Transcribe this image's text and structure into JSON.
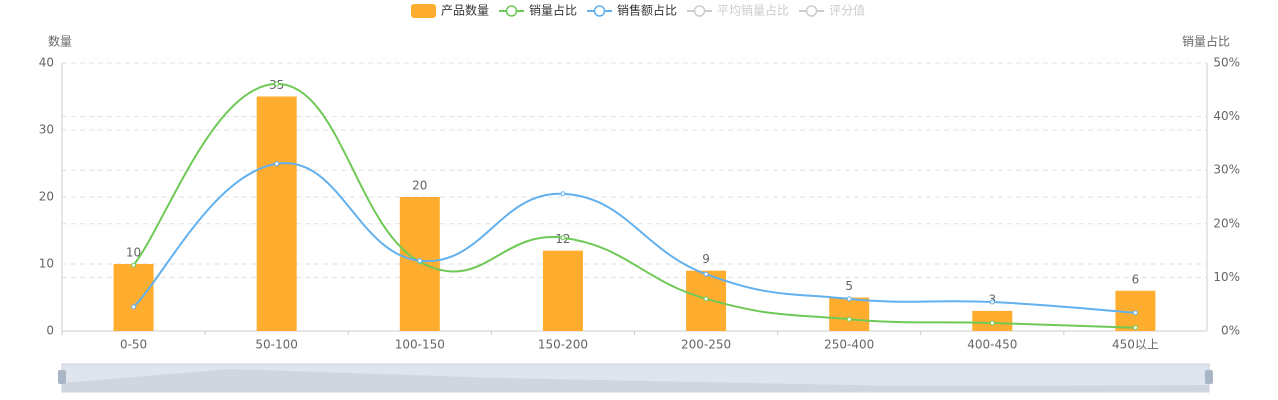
{
  "chart_data": {
    "type": "bar-line",
    "categories": [
      "0-50",
      "50-100",
      "100-150",
      "150-200",
      "200-250",
      "250-400",
      "400-450",
      "450以上"
    ],
    "y_label": "数量",
    "y2_label": "销量占比",
    "ylim": [
      0,
      40
    ],
    "yticks": [
      0,
      10,
      20,
      30,
      40
    ],
    "y2lim": [
      0,
      50
    ],
    "y2ticks": [
      {
        "value": 0,
        "label": "0%"
      },
      {
        "value": 10,
        "label": "10%"
      },
      {
        "value": 20,
        "label": "20%"
      },
      {
        "value": 30,
        "label": "30%"
      },
      {
        "value": 40,
        "label": "40%"
      },
      {
        "value": 50,
        "label": "50%"
      }
    ],
    "grid": true,
    "series": [
      {
        "name": "产品数量",
        "type": "bar",
        "color": "#ffad2f",
        "values": [
          10,
          35,
          20,
          12,
          9,
          5,
          3,
          6
        ]
      },
      {
        "name": "销量占比",
        "type": "line",
        "axis": "y2",
        "color": "#6fc956",
        "values": [
          12.3,
          46.1,
          12.9,
          17.4,
          6.0,
          2.2,
          1.5,
          0.6
        ]
      },
      {
        "name": "销售额占比",
        "type": "line",
        "axis": "y2",
        "color": "#62b0ee",
        "values": [
          4.5,
          31.2,
          13.1,
          25.6,
          10.6,
          6.0,
          5.4,
          3.4
        ]
      },
      {
        "name": "平均销量占比",
        "type": "line",
        "axis": "y2",
        "visible": false
      },
      {
        "name": "评分值",
        "type": "line",
        "axis": "y2",
        "visible": false
      }
    ]
  }
}
